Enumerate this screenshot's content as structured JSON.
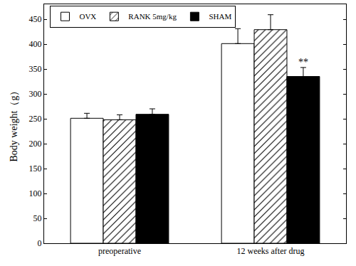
{
  "chart_data": {
    "type": "bar",
    "y_label": "Body weight（g）",
    "categories": [
      "preoperative",
      "12 weeks after drug"
    ],
    "series": [
      {
        "name": "OVX",
        "color": "#ffffff",
        "marker": "solid",
        "values": [
          251,
          401
        ],
        "errors": [
          10,
          30
        ]
      },
      {
        "name": "RANK 5mg/kg",
        "color": "#ffffff",
        "marker": "hatched",
        "values": [
          248,
          429
        ],
        "errors": [
          10,
          30
        ]
      },
      {
        "name": "SHAM",
        "color": "#000000",
        "marker": "solid",
        "values": [
          259,
          335
        ],
        "errors": [
          11,
          18
        ]
      }
    ],
    "annotations": [
      {
        "text": "**",
        "category": "12 weeks after drug",
        "series": "SHAM"
      }
    ],
    "ylim": [
      0,
      480
    ],
    "yticks": [
      0,
      50,
      100,
      150,
      200,
      250,
      300,
      350,
      400,
      450
    ],
    "grid": false,
    "legend": "top"
  }
}
